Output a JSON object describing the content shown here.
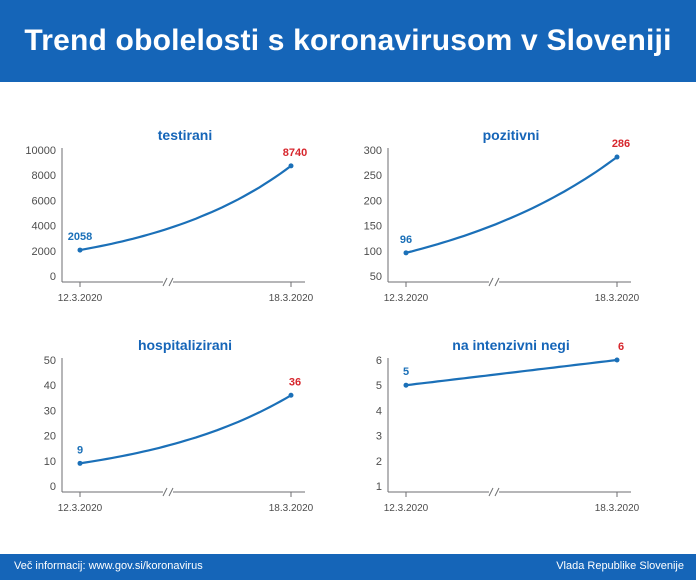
{
  "header": {
    "title": "Trend obolelosti s koronavirusom v Sloveniji"
  },
  "footer": {
    "left": "Več informacij: www.gov.si/koronavirus",
    "right": "Vlada Republike Slovenije"
  },
  "colors": {
    "brand": "#1565b8",
    "line": "#1b70b8",
    "highlight": "#d7262d",
    "axis": "#6d6e71"
  },
  "chart_data": [
    {
      "type": "line",
      "title": "testirani",
      "x": [
        "12.3.2020",
        "18.3.2020"
      ],
      "values": [
        2058,
        8740
      ],
      "value_labels": [
        "2058",
        "8740"
      ],
      "yticks": [
        "0",
        "2000",
        "4000",
        "6000",
        "8000",
        "10000"
      ],
      "ylim": [
        0,
        10000
      ],
      "axis_break": true,
      "curve": "exponential",
      "grid": false
    },
    {
      "type": "line",
      "title": "pozitivni",
      "x": [
        "12.3.2020",
        "18.3.2020"
      ],
      "values": [
        96,
        286
      ],
      "value_labels": [
        "96",
        "286"
      ],
      "yticks": [
        "50",
        "100",
        "150",
        "200",
        "250",
        "300"
      ],
      "ylim": [
        50,
        300
      ],
      "axis_break": true,
      "curve": "exponential",
      "grid": false
    },
    {
      "type": "line",
      "title": "hospitalizirani",
      "x": [
        "12.3.2020",
        "18.3.2020"
      ],
      "values": [
        9,
        36
      ],
      "value_labels": [
        "9",
        "36"
      ],
      "yticks": [
        "0",
        "10",
        "20",
        "30",
        "40",
        "50"
      ],
      "ylim": [
        0,
        50
      ],
      "axis_break": true,
      "curve": "exponential",
      "grid": false
    },
    {
      "type": "line",
      "title": "na intenzivni negi",
      "x": [
        "12.3.2020",
        "18.3.2020"
      ],
      "values": [
        5,
        6
      ],
      "value_labels": [
        "5",
        "6"
      ],
      "yticks": [
        "1",
        "2",
        "3",
        "4",
        "5",
        "6"
      ],
      "ylim": [
        1,
        6
      ],
      "axis_break": true,
      "curve": "linear",
      "grid": false
    }
  ]
}
